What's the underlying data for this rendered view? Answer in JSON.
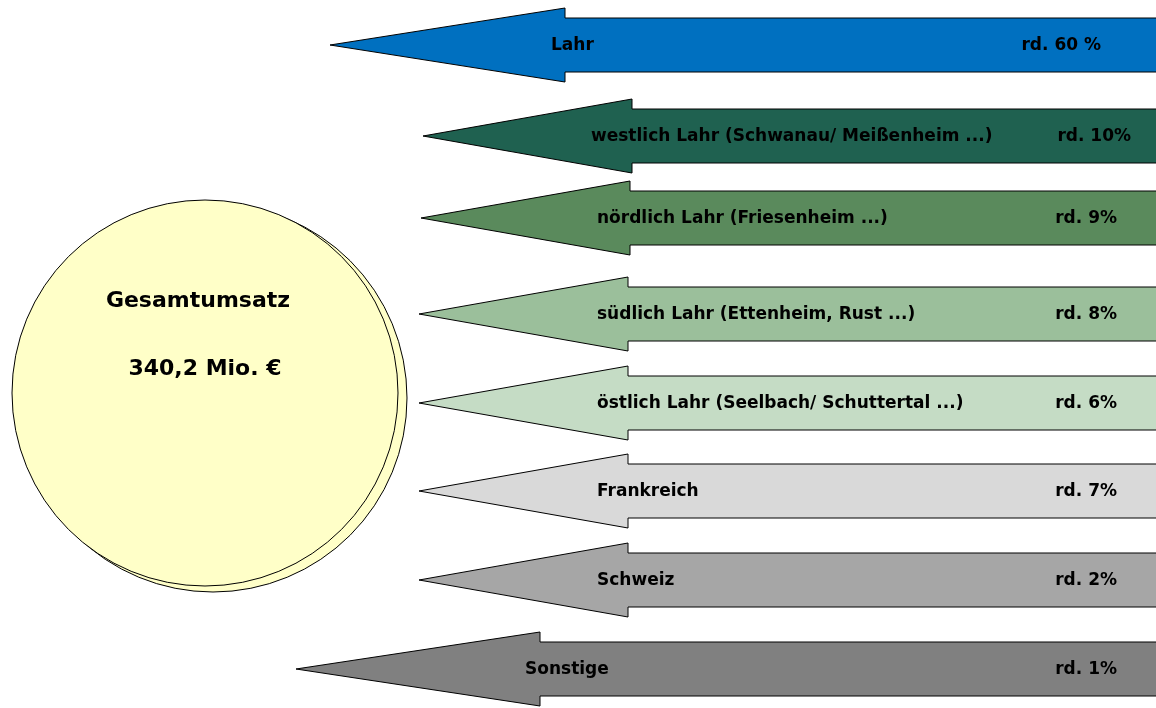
{
  "chart_data": {
    "type": "other",
    "title": "Gesamtumsatz",
    "annotations": [
      "340,2 Mio. €"
    ],
    "categories": [
      "Lahr",
      "westlich Lahr (Schwanau/ Meißenheim ...)",
      "nördlich Lahr  (Friesenheim ...)",
      "südlich Lahr (Ettenheim, Rust ...)",
      "östlich Lahr (Seelbach/ Schuttertal ...)",
      "Frankreich",
      "Schweiz",
      "Sonstige"
    ],
    "values": [
      60,
      10,
      9,
      8,
      6,
      7,
      2,
      1
    ],
    "value_labels": [
      "rd. 60 %",
      "rd. 10%",
      "rd. 9%",
      "rd. 8%",
      "rd. 6%",
      "rd. 7%",
      "rd. 2%",
      "rd. 1%"
    ],
    "colors": [
      "#0070c0",
      "#1f6150",
      "#5a8a5c",
      "#9bbf9b",
      "#c5dcc5",
      "#d9d9d9",
      "#a6a6a6",
      "#808080"
    ]
  }
}
